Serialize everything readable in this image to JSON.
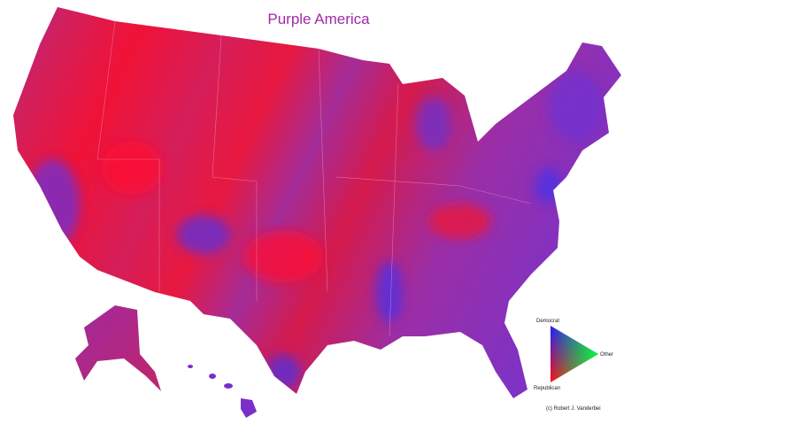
{
  "title": "Purple America",
  "legend": {
    "top": "Democrat",
    "right": "Other",
    "bottom": "Republican"
  },
  "credit": "(c) Robert J. Vanderbei"
}
